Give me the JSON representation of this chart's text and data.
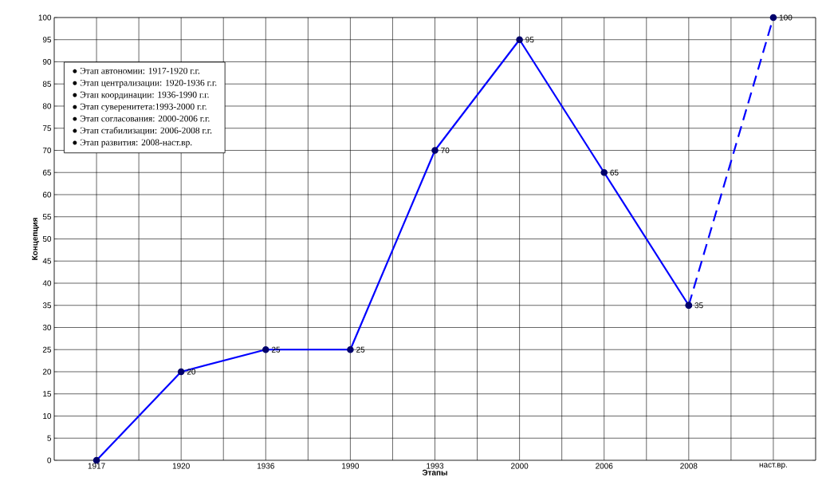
{
  "chart_data": {
    "type": "line",
    "xlabel": "Этапы",
    "ylabel": "Концепция",
    "categories": [
      "1917",
      "1920",
      "1936",
      "1990",
      "1993",
      "2000",
      "2006",
      "2008",
      "наст.вр."
    ],
    "series": [
      {
        "color": "#0000ff",
        "line_style": "solid",
        "values": [
          0,
          20,
          25,
          25,
          70,
          95,
          65,
          35,
          null
        ],
        "value_labels": [
          null,
          "20",
          "25",
          "25",
          "70",
          "95",
          "65",
          "35",
          null
        ]
      },
      {
        "color": "#0000ff",
        "line_style": "dashed",
        "values": [
          null,
          null,
          null,
          null,
          null,
          null,
          null,
          35,
          100
        ],
        "value_labels": [
          null,
          null,
          null,
          null,
          null,
          null,
          null,
          null,
          "100"
        ]
      }
    ],
    "ylim": [
      0,
      100
    ],
    "yticks": [
      0,
      5,
      10,
      15,
      20,
      25,
      30,
      35,
      40,
      45,
      50,
      55,
      60,
      65,
      70,
      75,
      80,
      85,
      90,
      95,
      100
    ],
    "grid": true,
    "marker": "circle",
    "annotations": [
      "● Этап автономии:   1917-1920 г.г.",
      "● Этап централизации: 1920-1936 г.г.",
      "● Этап координации: 1936-1990 г.г.",
      "● Этап суверенитета:1993-2000 г.г.",
      "● Этап согласования:    2000-2006 г.г.",
      "● Этап стабилизации:   2006-2008 г.г.",
      "● Этап развития:          2008-наст.вр."
    ]
  }
}
